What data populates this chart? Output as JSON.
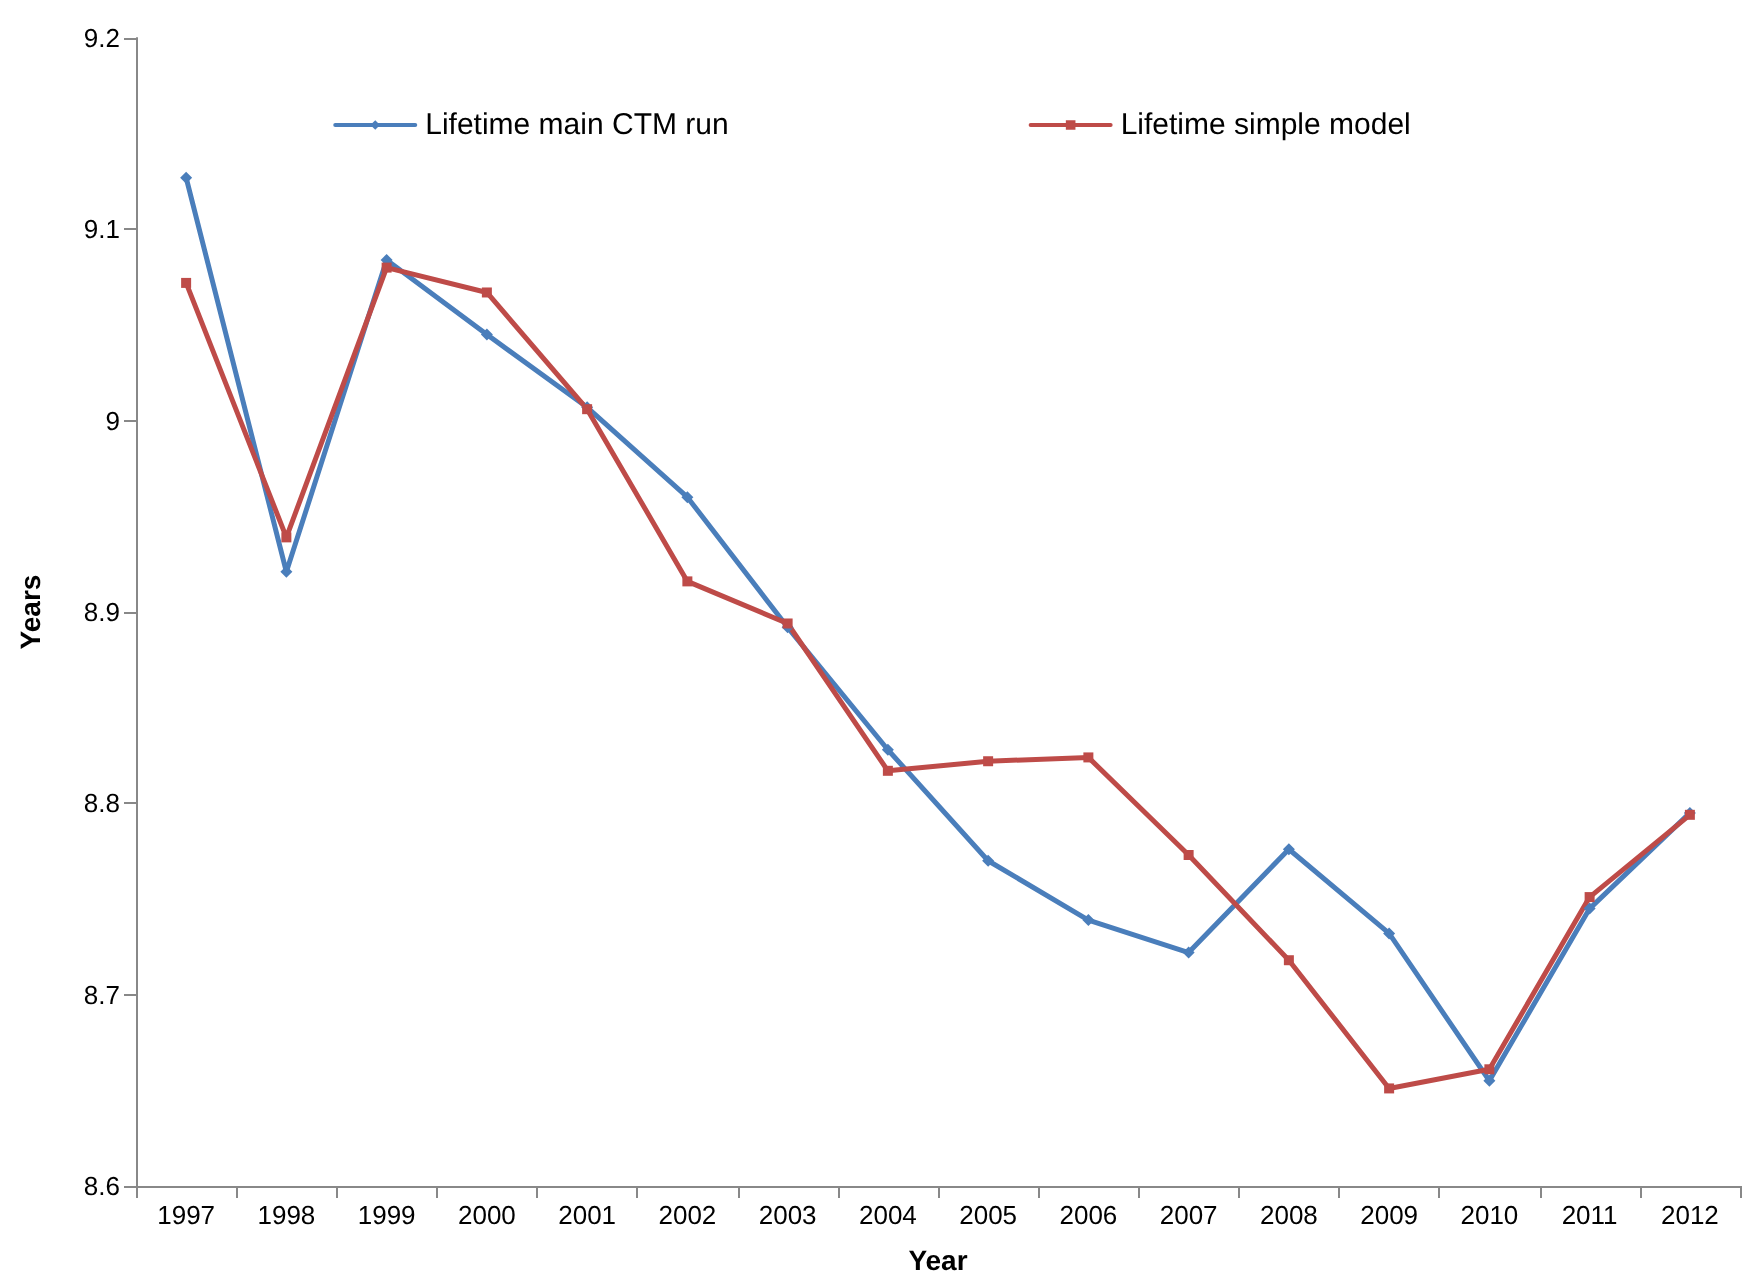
{
  "chart_data": {
    "type": "line",
    "xlabel": "Year",
    "ylabel": "Years",
    "categories": [
      "1997",
      "1998",
      "1999",
      "2000",
      "2001",
      "2002",
      "2003",
      "2004",
      "2005",
      "2006",
      "2007",
      "2008",
      "2009",
      "2010",
      "2011",
      "2012"
    ],
    "series": [
      {
        "name": "Lifetime main CTM run",
        "color": "#4a7ebb",
        "marker": "diamond",
        "values": [
          9.127,
          8.921,
          9.084,
          9.045,
          9.007,
          8.96,
          8.892,
          8.828,
          8.77,
          8.739,
          8.722,
          8.776,
          8.732,
          8.655,
          8.745,
          8.795
        ]
      },
      {
        "name": "Lifetime simple model",
        "color": "#be4b48",
        "marker": "square",
        "values": [
          9.072,
          8.939,
          9.08,
          9.067,
          9.006,
          8.916,
          8.894,
          8.817,
          8.822,
          8.824,
          8.773,
          8.718,
          8.651,
          8.661,
          8.751,
          8.794
        ]
      }
    ],
    "ylim": [
      8.6,
      9.2
    ],
    "yticks": [
      8.6,
      8.7,
      8.8,
      8.9,
      9,
      9.1,
      9.2
    ],
    "grid": false,
    "legend": "top",
    "line_style": "solid"
  }
}
